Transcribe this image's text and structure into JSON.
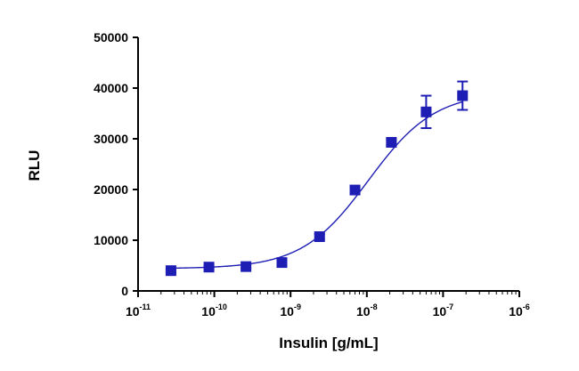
{
  "chart_data": {
    "type": "scatter",
    "title": "",
    "xlabel": "Insulin [g/mL]",
    "ylabel": "RLU",
    "x_scale": "log",
    "xlim": [
      1e-11,
      1e-06
    ],
    "ylim": [
      0,
      50000
    ],
    "y_ticks": [
      0,
      10000,
      20000,
      30000,
      40000,
      50000
    ],
    "y_tick_labels": [
      "0",
      "10000",
      "20000",
      "30000",
      "40000",
      "50000"
    ],
    "x_ticks": [
      {
        "value": 1e-11,
        "base": "10",
        "exp": "-11"
      },
      {
        "value": 1e-10,
        "base": "10",
        "exp": "-10"
      },
      {
        "value": 1e-09,
        "base": "10",
        "exp": "-9"
      },
      {
        "value": 1e-08,
        "base": "10",
        "exp": "-8"
      },
      {
        "value": 1e-07,
        "base": "10",
        "exp": "-7"
      },
      {
        "value": 1e-06,
        "base": "10",
        "exp": "-6"
      }
    ],
    "grid": false,
    "color": "#1e1eb4",
    "series": [
      {
        "x": [
          2.7e-11,
          8.5e-11,
          2.6e-10,
          7.7e-10,
          2.4e-09,
          7e-09,
          2.1e-08,
          6e-08,
          1.8e-07
        ],
        "y": [
          4000,
          4700,
          4800,
          5600,
          10700,
          19900,
          29300,
          35300,
          38500
        ],
        "y_err": [
          300,
          300,
          300,
          400,
          500,
          800,
          600,
          3200,
          2800
        ]
      }
    ],
    "fit": {
      "type": "sigmoidal dose-response (4PL)",
      "bottom": 4400,
      "top": 39200,
      "ec50": 1.05e-08,
      "hill": 1.0
    }
  }
}
